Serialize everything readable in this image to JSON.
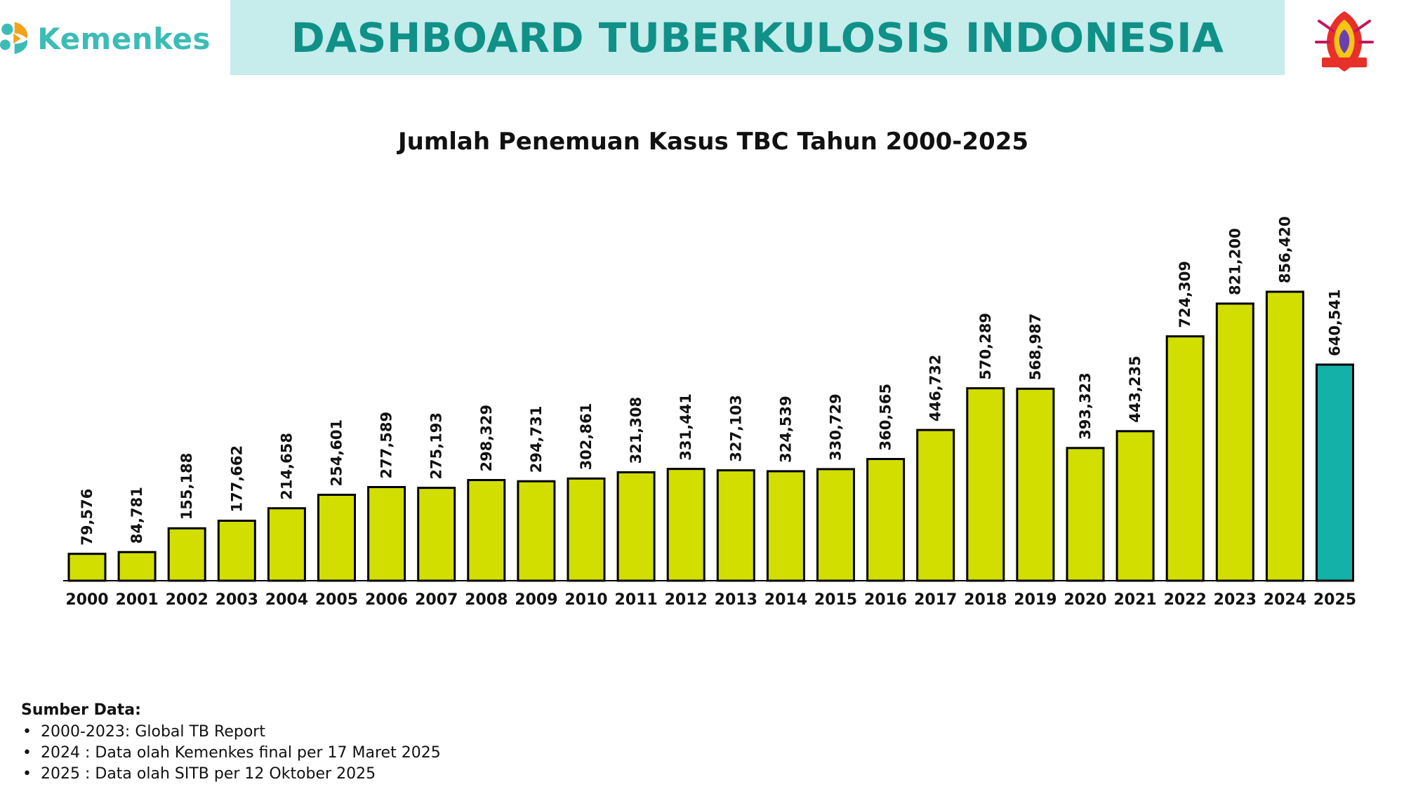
{
  "header": {
    "logo_text": "Kemenkes",
    "title": "DASHBOARD TUBERKULOSIS INDONESIA"
  },
  "chart_data": {
    "type": "bar",
    "title": "Jumlah Penemuan Kasus TBC Tahun 2000-2025",
    "categories": [
      "2000",
      "2001",
      "2002",
      "2003",
      "2004",
      "2005",
      "2006",
      "2007",
      "2008",
      "2009",
      "2010",
      "2011",
      "2012",
      "2013",
      "2014",
      "2015",
      "2016",
      "2017",
      "2018",
      "2019",
      "2020",
      "2021",
      "2022",
      "2023",
      "2024",
      "2025"
    ],
    "values": [
      79576,
      84781,
      155188,
      177662,
      214658,
      254601,
      277589,
      275193,
      298329,
      294731,
      302861,
      321308,
      331441,
      327103,
      324539,
      330729,
      360565,
      446732,
      570289,
      568987,
      393323,
      443235,
      724309,
      821200,
      856420,
      640541
    ],
    "value_labels": [
      "79,576",
      "84,781",
      "155,188",
      "177,662",
      "214,658",
      "254,601",
      "277,589",
      "275,193",
      "298,329",
      "294,731",
      "302,861",
      "321,308",
      "331,441",
      "327,103",
      "324,539",
      "330,729",
      "360,565",
      "446,732",
      "570,289",
      "568,987",
      "393,323",
      "443,235",
      "724,309",
      "821,200",
      "856,420",
      "640,541"
    ],
    "xlabel": "",
    "ylabel": "",
    "ylim": [
      0,
      900000
    ],
    "grid": false,
    "colors": {
      "default_bar": "#d2de00",
      "highlight_bar": "#14b1a8",
      "bar_outline": "#000000"
    },
    "highlight_category": "2025"
  },
  "source": {
    "title": "Sumber Data:",
    "items": [
      "2000-2023: Global TB Report",
      "2024 : Data olah Kemenkes final per 17 Maret 2025",
      "2025 : Data olah SITB per 12 Oktober 2025"
    ]
  }
}
